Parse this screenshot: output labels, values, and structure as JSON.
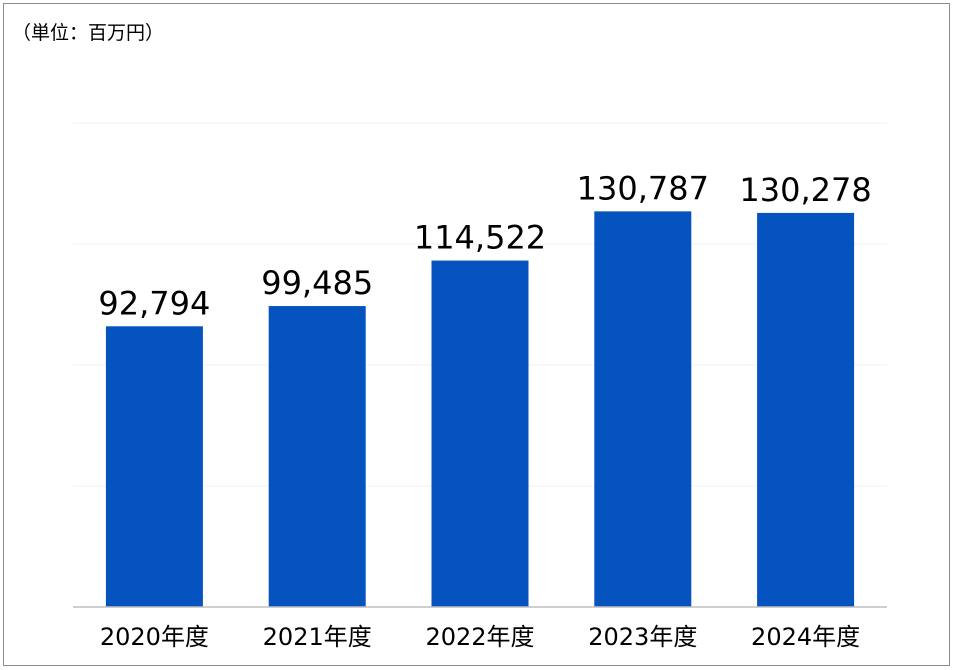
{
  "unit_label": "（単位：百万円）",
  "chart_data": {
    "type": "bar",
    "title": "",
    "xlabel": "",
    "ylabel": "",
    "unit": "百万円",
    "categories": [
      "2020年度",
      "2021年度",
      "2022年度",
      "2023年度",
      "2024年度"
    ],
    "values": [
      92794,
      99485,
      114522,
      130787,
      130278
    ],
    "value_labels": [
      "92,794",
      "99,485",
      "114,522",
      "130,787",
      "130,278"
    ],
    "ylim": [
      0,
      160000
    ],
    "grid": true,
    "legend": "none",
    "bar_color": "#0553BF"
  }
}
